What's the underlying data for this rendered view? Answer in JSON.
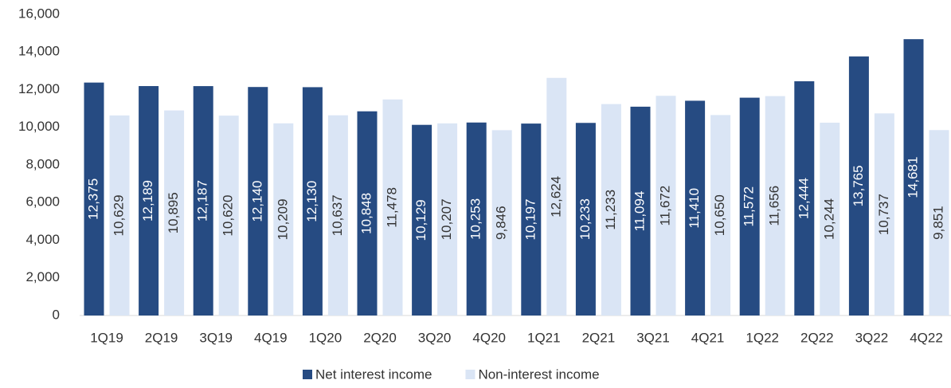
{
  "chart_data": {
    "type": "bar",
    "categories": [
      "1Q19",
      "2Q19",
      "3Q19",
      "4Q19",
      "1Q20",
      "2Q20",
      "3Q20",
      "4Q20",
      "1Q21",
      "2Q21",
      "3Q21",
      "4Q21",
      "1Q22",
      "2Q22",
      "3Q22",
      "4Q22"
    ],
    "series": [
      {
        "name": "Net interest income",
        "color": "#264b82",
        "values": [
          12375,
          12189,
          12187,
          12140,
          12130,
          10848,
          10129,
          10253,
          10197,
          10233,
          11094,
          11410,
          11572,
          12444,
          13765,
          14681
        ],
        "value_labels": [
          "12,375",
          "12,189",
          "12,187",
          "12,140",
          "12,130",
          "10,848",
          "10,129",
          "10,253",
          "10,197",
          "10,233",
          "11,094",
          "11,410",
          "11,572",
          "12,444",
          "13,765",
          "14,681"
        ]
      },
      {
        "name": "Non-interest income",
        "color": "#dae5f5",
        "values": [
          10629,
          10895,
          10620,
          10209,
          10637,
          11478,
          10207,
          9846,
          12624,
          11233,
          11672,
          10650,
          11656,
          10244,
          10737,
          9851
        ],
        "value_labels": [
          "10,629",
          "10,895",
          "10,620",
          "10,209",
          "10,637",
          "11,478",
          "10,207",
          "9,846",
          "12,624",
          "11,233",
          "11,672",
          "10,650",
          "11,656",
          "10,244",
          "10,737",
          "9,851"
        ]
      }
    ],
    "ylim": [
      0,
      16000
    ],
    "yticks": [
      0,
      {
        "value": 2000,
        "label": "2,000"
      },
      {
        "value": 4000,
        "label": "4,000"
      },
      {
        "value": 6000,
        "label": "6,000"
      },
      {
        "value": 8000,
        "label": "8,000"
      },
      {
        "value": 10000,
        "label": "10,000"
      },
      {
        "value": 12000,
        "label": "12,000"
      },
      {
        "value": 14000,
        "label": "14,000"
      },
      {
        "value": 16000,
        "label": "16,000"
      }
    ],
    "grid": false,
    "legend": "bottom"
  }
}
